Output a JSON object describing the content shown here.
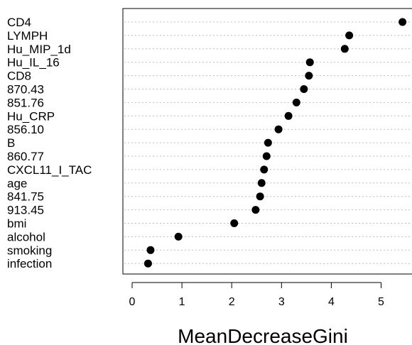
{
  "chart_data": {
    "type": "scatter",
    "title": "",
    "xlabel": "MeanDecreaseGini",
    "ylabel": "",
    "xlim": [
      -0.2,
      5.65
    ],
    "xticks": [
      0,
      1,
      2,
      3,
      4,
      5
    ],
    "grid": "horizontal dotted",
    "categories": [
      "CD4",
      "LYMPH",
      "Hu_MIP_1d",
      "Hu_IL_16",
      "CD8",
      "870.43",
      "851.76",
      "Hu_CRP",
      "856.10",
      "B",
      "860.77",
      "CXCL11_I_TAC",
      "age",
      "841.75",
      "913.45",
      "bmi",
      "alcohol",
      "smoking",
      "infection"
    ],
    "values": [
      5.43,
      4.36,
      4.27,
      3.57,
      3.55,
      3.45,
      3.3,
      3.14,
      2.94,
      2.73,
      2.7,
      2.65,
      2.6,
      2.57,
      2.48,
      2.05,
      0.93,
      0.37,
      0.32
    ]
  },
  "colors": {
    "point": "#000000",
    "grid": "#bdbdbd"
  }
}
